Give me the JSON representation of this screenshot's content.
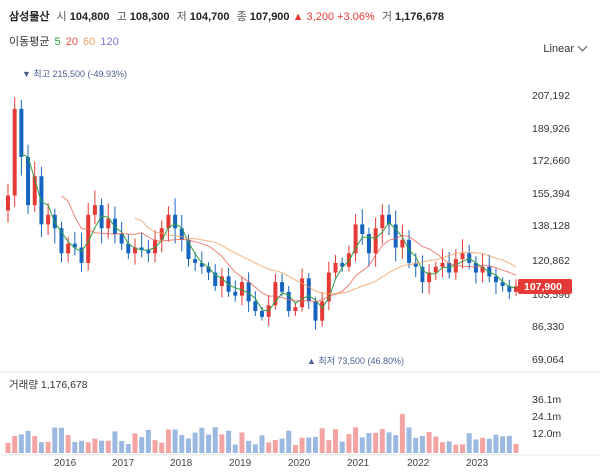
{
  "header": {
    "name": "삼성물산",
    "open_label": "시",
    "open": "104,800",
    "high_label": "고",
    "high": "108,300",
    "low_label": "저",
    "low": "104,700",
    "close_label": "종",
    "close": "107,900",
    "change": "▲ 3,200 +3.06%",
    "volume_label": "거",
    "volume": "1,176,678"
  },
  "ma": {
    "label": "이동평균",
    "p5": "5",
    "p20": "20",
    "p60": "60",
    "p120": "120",
    "c5": "#2e9d3f",
    "c20": "#e8574c",
    "c60": "#f0a060",
    "c120": "#8b6fd6"
  },
  "scale_label": "Linear",
  "colors": {
    "up": "#e53935",
    "down": "#1565c0",
    "vol_up": "#f4a3a3",
    "vol_down": "#9bb8e0",
    "annot": "#4b5e92"
  },
  "price_badge": "107,900",
  "annotations": {
    "high": "▼ 최고 215,500 (-49.93%)",
    "low": "▲ 최저 73,500 (46.80%)"
  },
  "volume_panel": {
    "label": "거래량 1,176,678",
    "ticks": [
      "36.1m",
      "24.1m",
      "12.0m"
    ]
  },
  "chart_data": {
    "type": "candlestick",
    "title": "삼성물산",
    "y_ticks": [
      "207,192",
      "189,926",
      "172,660",
      "155,394",
      "138,128",
      "120,862",
      "103,596",
      "86,330",
      "69,064"
    ],
    "ylim": [
      60000,
      230000
    ],
    "x_ticks": [
      "2016",
      "2017",
      "2018",
      "2019",
      "2020",
      "2021",
      "2022",
      "2023"
    ],
    "last_price": 107900,
    "high": 215500,
    "low": 73500,
    "volume_ticks_m": [
      36.1,
      24.1,
      12.0
    ],
    "monthly_close": [
      155000,
      200000,
      175000,
      150000,
      165000,
      140000,
      145000,
      138000,
      125000,
      130000,
      128000,
      120000,
      145000,
      150000,
      138000,
      143000,
      135000,
      130000,
      125000,
      128000,
      127000,
      125000,
      132000,
      138000,
      145000,
      138000,
      132000,
      122000,
      120000,
      118000,
      115000,
      108000,
      113000,
      105000,
      103000,
      110000,
      100000,
      95000,
      92000,
      98000,
      110000,
      105000,
      95000,
      97000,
      112000,
      100000,
      90000,
      100000,
      115000,
      120000,
      118000,
      125000,
      140000,
      135000,
      125000,
      138000,
      145000,
      140000,
      128000,
      132000,
      120000,
      118000,
      110000,
      115000,
      118000,
      120000,
      115000,
      122000,
      125000,
      120000,
      115000,
      118000,
      113000,
      110000,
      108000,
      105000,
      107900
    ]
  }
}
